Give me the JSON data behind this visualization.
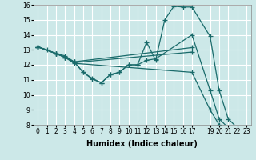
{
  "xlabel": "Humidex (Indice chaleur)",
  "bg_color": "#cce8e8",
  "grid_color": "#ffffff",
  "line_color": "#1a6b6b",
  "lines": [
    {
      "x": [
        0,
        1,
        2,
        3,
        4,
        5,
        6,
        7,
        8,
        9,
        10,
        11,
        12,
        13,
        14,
        15,
        16,
        17,
        19,
        20,
        21,
        22,
        23
      ],
      "y": [
        13.2,
        13.0,
        12.75,
        12.6,
        12.2,
        11.5,
        11.1,
        10.8,
        11.35,
        11.5,
        12.0,
        12.0,
        13.5,
        12.3,
        15.0,
        15.9,
        15.85,
        15.85,
        13.9,
        10.3,
        8.4,
        7.8,
        7.65
      ]
    },
    {
      "x": [
        0,
        2,
        3,
        4,
        5,
        6,
        7,
        8,
        9,
        10,
        11,
        12,
        13,
        17,
        19,
        20,
        21,
        22,
        23
      ],
      "y": [
        13.2,
        12.75,
        12.5,
        12.2,
        11.5,
        11.05,
        10.8,
        11.35,
        11.5,
        12.0,
        12.0,
        12.3,
        12.4,
        14.0,
        10.3,
        8.4,
        7.8,
        7.65,
        7.5
      ]
    },
    {
      "x": [
        0,
        2,
        3,
        4,
        17
      ],
      "y": [
        13.2,
        12.75,
        12.5,
        12.2,
        13.15
      ]
    },
    {
      "x": [
        0,
        2,
        3,
        4,
        17
      ],
      "y": [
        13.2,
        12.75,
        12.5,
        12.15,
        12.85
      ]
    },
    {
      "x": [
        0,
        2,
        3,
        4,
        17,
        19,
        20,
        21,
        22,
        23
      ],
      "y": [
        13.2,
        12.75,
        12.5,
        12.1,
        11.5,
        9.0,
        8.0,
        7.65,
        7.5,
        7.4
      ]
    }
  ],
  "xlim": [
    -0.5,
    23.5
  ],
  "ylim": [
    8,
    16
  ],
  "xtick_positions": [
    0,
    1,
    2,
    3,
    4,
    5,
    6,
    7,
    8,
    9,
    10,
    11,
    12,
    13,
    14,
    15,
    16,
    17,
    19,
    20,
    21,
    22,
    23
  ],
  "xtick_labels": [
    "0",
    "1",
    "2",
    "3",
    "4",
    "5",
    "6",
    "7",
    "8",
    "9",
    "10",
    "11",
    "12",
    "13",
    "14",
    "15",
    "16",
    "17",
    "19",
    "20",
    "21",
    "22",
    "23"
  ],
  "yticks": [
    8,
    9,
    10,
    11,
    12,
    13,
    14,
    15,
    16
  ],
  "tick_fontsize": 5.5,
  "label_fontsize": 7
}
